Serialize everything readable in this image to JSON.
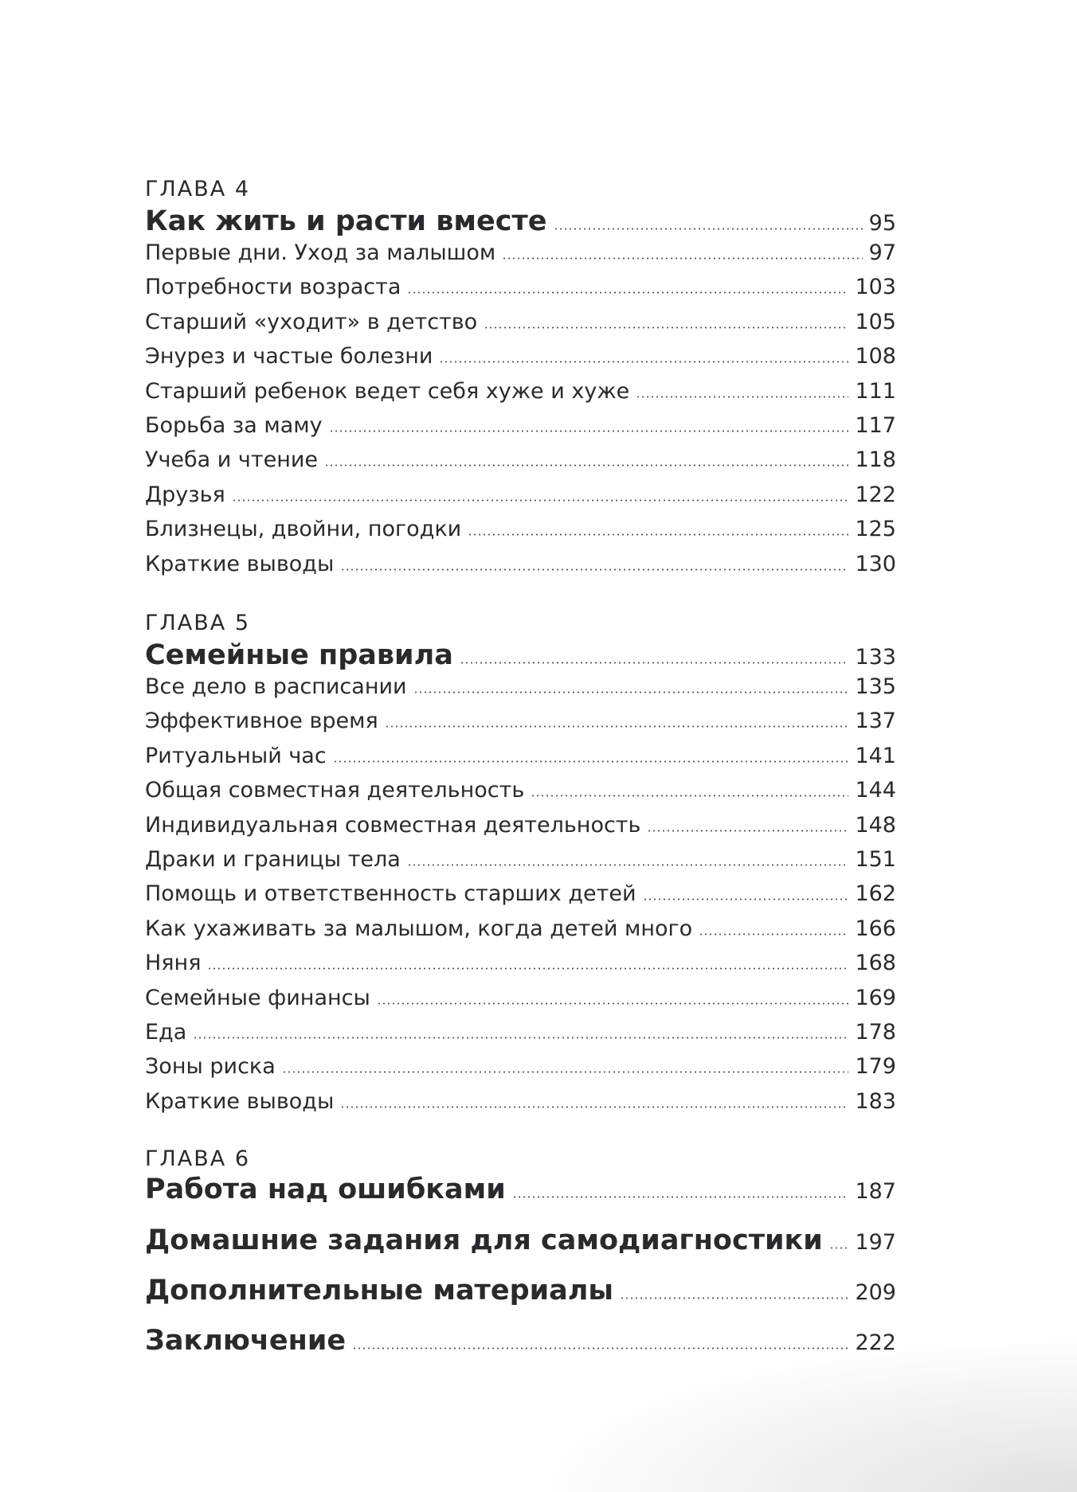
{
  "chapters": [
    {
      "label": "ГЛАВА 4",
      "title": "Как жить и расти вместе",
      "page": "95",
      "entries": [
        {
          "t": "Первые дни. Уход за малышом",
          "p": "97"
        },
        {
          "t": "Потребности возраста",
          "p": "103"
        },
        {
          "t": "Старший «уходит» в детство",
          "p": "105"
        },
        {
          "t": "Энурез и частые болезни",
          "p": "108"
        },
        {
          "t": "Старший ребенок ведет себя хуже и хуже",
          "p": "111"
        },
        {
          "t": "Борьба за маму",
          "p": "117"
        },
        {
          "t": "Учеба и чтение",
          "p": "118"
        },
        {
          "t": "Друзья",
          "p": "122"
        },
        {
          "t": "Близнецы, двойни, погодки",
          "p": "125"
        },
        {
          "t": "Краткие выводы",
          "p": "130"
        }
      ]
    },
    {
      "label": "ГЛАВА 5",
      "title": "Семейные правила",
      "page": "133",
      "entries": [
        {
          "t": "Все дело в расписании",
          "p": "135"
        },
        {
          "t": "Эффективное время",
          "p": "137"
        },
        {
          "t": "Ритуальный час",
          "p": "141"
        },
        {
          "t": "Общая совместная деятельность",
          "p": "144"
        },
        {
          "t": "Индивидуальная совместная деятельность",
          "p": "148"
        },
        {
          "t": "Драки и границы тела",
          "p": "151"
        },
        {
          "t": "Помощь и ответственность старших детей",
          "p": "162"
        },
        {
          "t": "Как ухаживать за малышом, когда детей много",
          "p": "166"
        },
        {
          "t": "Няня",
          "p": "168"
        },
        {
          "t": "Семейные финансы",
          "p": "169"
        },
        {
          "t": "Еда",
          "p": "178"
        },
        {
          "t": "Зоны риска",
          "p": "179"
        },
        {
          "t": "Краткие выводы",
          "p": "183"
        }
      ]
    },
    {
      "label": "ГЛАВА 6",
      "title": "Работа над ошибками",
      "page": "187",
      "entries": []
    }
  ],
  "sections": [
    {
      "t": "Домашние задания для самодиагностики",
      "p": "197"
    },
    {
      "t": "Дополнительные материалы",
      "p": "209"
    },
    {
      "t": "Заключение",
      "p": "222"
    }
  ]
}
